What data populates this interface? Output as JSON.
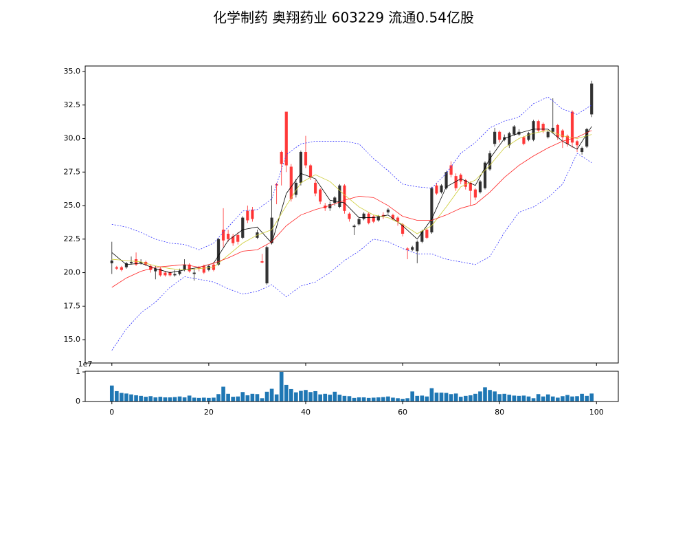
{
  "chart_data": [
    {
      "type": "candlestick",
      "title": "化学制药 奥翔药业 603229 流通0.54亿股",
      "x": [
        0,
        1,
        2,
        3,
        4,
        5,
        6,
        7,
        8,
        9,
        10,
        11,
        12,
        13,
        14,
        15,
        16,
        17,
        18,
        19,
        20,
        21,
        22,
        23,
        24,
        25,
        26,
        27,
        28,
        29,
        30,
        31,
        32,
        33,
        34,
        35,
        36,
        37,
        38,
        39,
        40,
        41,
        42,
        43,
        44,
        45,
        46,
        47,
        48,
        49,
        50,
        51,
        52,
        53,
        54,
        55,
        56,
        57,
        58,
        59,
        60,
        61,
        62,
        63,
        64,
        65,
        66,
        67,
        68,
        69,
        70,
        71,
        72,
        73,
        74,
        75,
        76,
        77,
        78,
        79,
        80,
        81,
        82,
        83,
        84,
        85,
        86,
        87,
        88,
        89,
        90,
        91,
        92,
        93,
        94,
        95,
        96,
        97,
        98,
        99
      ],
      "open": [
        20.7,
        20.4,
        20.4,
        20.4,
        20.7,
        21.0,
        20.7,
        20.8,
        20.5,
        20.1,
        20.3,
        20.0,
        20.0,
        19.8,
        19.9,
        20.2,
        20.6,
        19.9,
        20.4,
        20.5,
        20.2,
        20.6,
        20.6,
        23.2,
        22.9,
        22.7,
        22.8,
        22.6,
        24.6,
        24.7,
        22.6,
        20.85,
        19.2,
        22.2,
        26.6,
        29.0,
        32.0,
        27.9,
        25.8,
        26.7,
        29.0,
        28.0,
        26.7,
        26.2,
        25.0,
        24.8,
        25.2,
        24.9,
        26.5,
        24.4,
        23.4,
        23.6,
        24.0,
        24.4,
        24.2,
        23.9,
        24.3,
        24.5,
        24.3,
        24.1,
        23.6,
        21.8,
        21.7,
        21.6,
        22.3,
        23.2,
        23.0,
        26.5,
        26.0,
        26.3,
        28.0,
        27.2,
        27.3,
        26.9,
        26.7,
        26.2,
        26.0,
        26.3,
        27.7,
        29.6,
        30.5,
        29.9,
        29.5,
        30.3,
        30.3,
        30.1,
        29.9,
        29.9,
        31.3,
        31.1,
        30.1,
        30.5,
        31.0,
        30.6,
        30.2,
        32.0,
        29.8,
        29.0,
        29.4,
        31.8
      ],
      "high": [
        22.3,
        20.5,
        20.5,
        20.8,
        21.2,
        21.5,
        21.0,
        20.9,
        20.6,
        20.5,
        20.4,
        20.1,
        20.1,
        20.2,
        20.3,
        21.0,
        20.7,
        20.3,
        20.5,
        20.6,
        20.6,
        20.8,
        22.6,
        24.8,
        23.2,
        22.9,
        23.0,
        24.2,
        25.0,
        24.9,
        23.2,
        21.4,
        22.0,
        26.5,
        26.7,
        29.1,
        32.0,
        28.1,
        27.0,
        29.1,
        30.2,
        28.1,
        26.9,
        26.3,
        25.2,
        25.3,
        25.7,
        26.6,
        26.6,
        24.5,
        23.6,
        24.1,
        24.5,
        24.5,
        24.3,
        24.3,
        24.5,
        24.8,
        24.4,
        24.2,
        23.7,
        21.9,
        22.0,
        22.4,
        23.2,
        23.3,
        26.4,
        26.7,
        26.6,
        27.6,
        28.3,
        27.4,
        27.4,
        27.0,
        26.8,
        26.3,
        26.9,
        28.3,
        29.1,
        30.8,
        30.6,
        30.3,
        30.5,
        31.0,
        30.7,
        30.2,
        30.5,
        31.4,
        31.4,
        31.2,
        30.6,
        33.0,
        31.1,
        30.7,
        30.3,
        32.1,
        29.9,
        29.4,
        30.8,
        34.3
      ],
      "low": [
        19.9,
        20.2,
        20.1,
        20.3,
        20.6,
        20.5,
        20.6,
        20.5,
        20.0,
        19.5,
        19.7,
        19.7,
        19.7,
        19.7,
        19.8,
        20.1,
        20.0,
        19.4,
        20.1,
        19.9,
        20.1,
        20.1,
        20.5,
        21.9,
        22.3,
        22.0,
        22.1,
        22.5,
        23.7,
        23.8,
        22.5,
        20.7,
        19.1,
        22.1,
        25.1,
        26.5,
        27.5,
        25.3,
        25.6,
        26.5,
        27.8,
        26.9,
        25.7,
        25.1,
        24.6,
        24.6,
        25.0,
        24.8,
        24.4,
        23.8,
        22.8,
        23.5,
        23.9,
        23.6,
        23.7,
        23.8,
        24.0,
        24.4,
        23.9,
        23.5,
        22.7,
        21.0,
        21.6,
        20.7,
        22.2,
        22.5,
        22.9,
        25.8,
        25.9,
        26.2,
        27.1,
        26.1,
        26.6,
        26.2,
        25.0,
        25.4,
        25.9,
        26.2,
        27.6,
        29.4,
        29.7,
        29.8,
        29.3,
        30.2,
        30.2,
        29.5,
        29.8,
        29.8,
        30.5,
        30.4,
        30.0,
        30.4,
        29.9,
        29.3,
        29.4,
        29.3,
        29.0,
        28.8,
        29.3,
        31.6
      ],
      "close": [
        20.9,
        20.3,
        20.2,
        20.7,
        20.8,
        20.6,
        20.8,
        20.6,
        20.2,
        20.3,
        19.8,
        19.8,
        19.8,
        19.9,
        20.1,
        20.6,
        20.1,
        20.0,
        20.3,
        20.0,
        20.5,
        20.2,
        22.5,
        22.4,
        22.5,
        22.2,
        22.3,
        24.1,
        23.9,
        24.0,
        23.0,
        20.75,
        21.9,
        24.1,
        26.5,
        28.1,
        28.0,
        25.5,
        26.7,
        29.0,
        28.0,
        27.1,
        25.9,
        25.3,
        24.8,
        25.1,
        25.6,
        26.5,
        24.6,
        24.0,
        23.5,
        24.0,
        24.4,
        23.7,
        23.8,
        24.2,
        24.2,
        24.7,
        24.0,
        23.8,
        22.9,
        21.7,
        21.9,
        22.3,
        23.1,
        22.6,
        26.3,
        25.9,
        26.5,
        27.5,
        27.3,
        26.3,
        26.8,
        26.4,
        26.1,
        25.6,
        26.8,
        28.2,
        28.9,
        30.5,
        29.9,
        30.1,
        30.4,
        30.9,
        30.5,
        29.6,
        30.4,
        31.3,
        30.6,
        30.6,
        30.5,
        30.8,
        30.1,
        30.1,
        29.6,
        29.7,
        29.5,
        29.3,
        30.7,
        34.1
      ],
      "up_color": "#222222",
      "down_color": "#ff2a2a",
      "series": [
        {
          "color": "#000000",
          "x": [
            0,
            3,
            6,
            9,
            12,
            15,
            18,
            21,
            24,
            27,
            30,
            33,
            36,
            39,
            42,
            45,
            48,
            51,
            54,
            57,
            60,
            63,
            66,
            69,
            72,
            75,
            78,
            81,
            84,
            87,
            90,
            93,
            96,
            99
          ],
          "values": [
            21.5,
            20.6,
            20.7,
            20.3,
            20.0,
            20.2,
            20.4,
            20.7,
            22.4,
            23.2,
            23.4,
            22.2,
            25.9,
            27.4,
            27.0,
            25.4,
            25.2,
            24.1,
            24.1,
            24.3,
            23.5,
            22.5,
            24.0,
            26.4,
            27.0,
            26.5,
            28.5,
            30.0,
            30.4,
            30.7,
            30.7,
            29.8,
            29.2,
            30.9
          ]
        },
        {
          "color": "#cccc33",
          "x": [
            0,
            3,
            6,
            9,
            12,
            15,
            18,
            21,
            24,
            27,
            30,
            33,
            36,
            39,
            42,
            45,
            48,
            51,
            54,
            57,
            60,
            63,
            66,
            69,
            72,
            75,
            78,
            81,
            84,
            87,
            90,
            93,
            96,
            99
          ],
          "values": [
            21.0,
            20.9,
            20.8,
            20.5,
            20.3,
            20.2,
            20.3,
            20.4,
            21.3,
            22.2,
            22.8,
            23.2,
            25.0,
            26.7,
            27.3,
            26.8,
            25.8,
            24.9,
            24.3,
            24.1,
            23.6,
            22.9,
            23.5,
            24.9,
            26.4,
            26.9,
            28.0,
            29.3,
            30.0,
            30.4,
            30.6,
            30.2,
            30.0,
            30.3
          ]
        },
        {
          "color": "#ff2020",
          "x": [
            0,
            3,
            6,
            9,
            12,
            15,
            18,
            21,
            24,
            27,
            30,
            33,
            36,
            39,
            42,
            45,
            48,
            51,
            54,
            57,
            60,
            63,
            66,
            69,
            72,
            75,
            78,
            81,
            84,
            87,
            90,
            93,
            96,
            99
          ],
          "values": [
            18.9,
            19.6,
            20.1,
            20.4,
            20.5,
            20.6,
            20.4,
            20.7,
            21.1,
            21.6,
            21.7,
            22.3,
            23.5,
            24.3,
            24.7,
            25.0,
            25.4,
            25.7,
            25.6,
            25.0,
            24.2,
            23.9,
            23.9,
            24.3,
            24.8,
            25.1,
            26.0,
            27.1,
            28.0,
            28.7,
            29.3,
            29.8,
            30.1,
            30.6
          ]
        },
        {
          "color": "#3333ff",
          "dashed": true,
          "x": [
            0,
            3,
            6,
            9,
            12,
            15,
            18,
            21,
            24,
            27,
            30,
            33,
            36,
            39,
            42,
            45,
            48,
            51,
            54,
            57,
            60,
            63,
            66,
            69,
            72,
            75,
            78,
            81,
            84,
            87,
            90,
            93,
            96,
            99
          ],
          "values": [
            23.6,
            23.4,
            23.0,
            22.5,
            22.2,
            22.1,
            21.7,
            22.2,
            23.4,
            24.6,
            24.7,
            25.5,
            28.8,
            29.6,
            29.8,
            29.8,
            29.8,
            29.6,
            28.5,
            27.6,
            26.6,
            26.4,
            26.3,
            27.4,
            28.9,
            29.7,
            30.8,
            31.3,
            31.6,
            32.6,
            33.1,
            32.2,
            31.8,
            32.5
          ]
        },
        {
          "color": "#3333ff",
          "dashed": true,
          "x": [
            0,
            3,
            6,
            9,
            12,
            15,
            18,
            21,
            24,
            27,
            30,
            33,
            36,
            39,
            42,
            45,
            48,
            51,
            54,
            57,
            60,
            63,
            66,
            69,
            72,
            75,
            78,
            81,
            84,
            87,
            90,
            93,
            96,
            99
          ],
          "values": [
            14.2,
            15.8,
            17.0,
            17.8,
            18.9,
            19.7,
            19.5,
            19.3,
            18.8,
            18.4,
            18.6,
            19.1,
            18.2,
            19.0,
            19.3,
            20.0,
            20.9,
            21.6,
            22.5,
            22.3,
            21.8,
            21.4,
            21.4,
            21.0,
            20.8,
            20.6,
            21.2,
            23.0,
            24.5,
            24.9,
            25.6,
            26.6,
            28.9,
            28.2
          ]
        }
      ],
      "xlim": [
        -5.5,
        104.5
      ],
      "xticks": [
        0,
        20,
        40,
        60,
        80,
        100
      ],
      "xtick_labels": false,
      "ylim": [
        13.26,
        35.41
      ],
      "yticks": [
        {
          "value": 15,
          "label": "15.0"
        },
        17.5,
        {
          "value": 20,
          "label": "20.0"
        },
        22.5,
        {
          "value": 25,
          "label": "25.0"
        },
        27.5,
        {
          "value": 30,
          "label": "30.0"
        },
        32.5,
        {
          "value": 35,
          "label": "35.0"
        }
      ]
    },
    {
      "type": "bar",
      "color": "#1f77b4",
      "offset_label": "1e7",
      "x": [
        0,
        1,
        2,
        3,
        4,
        5,
        6,
        7,
        8,
        9,
        10,
        11,
        12,
        13,
        14,
        15,
        16,
        17,
        18,
        19,
        20,
        21,
        22,
        23,
        24,
        25,
        26,
        27,
        28,
        29,
        30,
        31,
        32,
        33,
        34,
        35,
        36,
        37,
        38,
        39,
        40,
        41,
        42,
        43,
        44,
        45,
        46,
        47,
        48,
        49,
        50,
        51,
        52,
        53,
        54,
        55,
        56,
        57,
        58,
        59,
        60,
        61,
        62,
        63,
        64,
        65,
        66,
        67,
        68,
        69,
        70,
        71,
        72,
        73,
        74,
        75,
        76,
        77,
        78,
        79,
        80,
        81,
        82,
        83,
        84,
        85,
        86,
        87,
        88,
        89,
        90,
        91,
        92,
        93,
        94,
        95,
        96,
        97,
        98,
        99
      ],
      "values": [
        5400000,
        3500000,
        2900000,
        2700000,
        2400000,
        2100000,
        1900000,
        1600000,
        1800000,
        1400000,
        1600000,
        1400000,
        1400000,
        1500000,
        1700000,
        1400000,
        2000000,
        1300000,
        1200000,
        1300000,
        1200000,
        1300000,
        2500000,
        5000000,
        2600000,
        1600000,
        1700000,
        3200000,
        2100000,
        2600000,
        2500000,
        1100000,
        3300000,
        4300000,
        2400000,
        10000000,
        5600000,
        4200000,
        3100000,
        3600000,
        3900000,
        3200000,
        3500000,
        2400000,
        2600000,
        2300000,
        3300000,
        2300000,
        1900000,
        1800000,
        1200000,
        1400000,
        1400000,
        1200000,
        1300000,
        1400000,
        1500000,
        1700000,
        1300000,
        1100000,
        900000,
        1100000,
        3400000,
        1900000,
        2000000,
        1700000,
        4500000,
        3000000,
        3000000,
        2900000,
        2500000,
        2700000,
        1600000,
        1900000,
        2100000,
        2600000,
        3400000,
        4800000,
        3900000,
        3400000,
        2500000,
        2600000,
        2300000,
        2000000,
        1900000,
        2000000,
        1700000,
        1100000,
        2500000,
        1700000,
        2400000,
        1700000,
        1300000,
        1800000,
        2200000,
        1700000,
        1800000,
        2600000,
        1900000,
        2700000
      ],
      "xlim": [
        -5.5,
        104.5
      ],
      "xticks": [
        0,
        20,
        40,
        60,
        80,
        100
      ],
      "xtick_labels": true,
      "ylim": [
        0,
        10230000
      ],
      "yticks": [
        0,
        {
          "value": 10000000,
          "label": "1"
        }
      ]
    }
  ]
}
